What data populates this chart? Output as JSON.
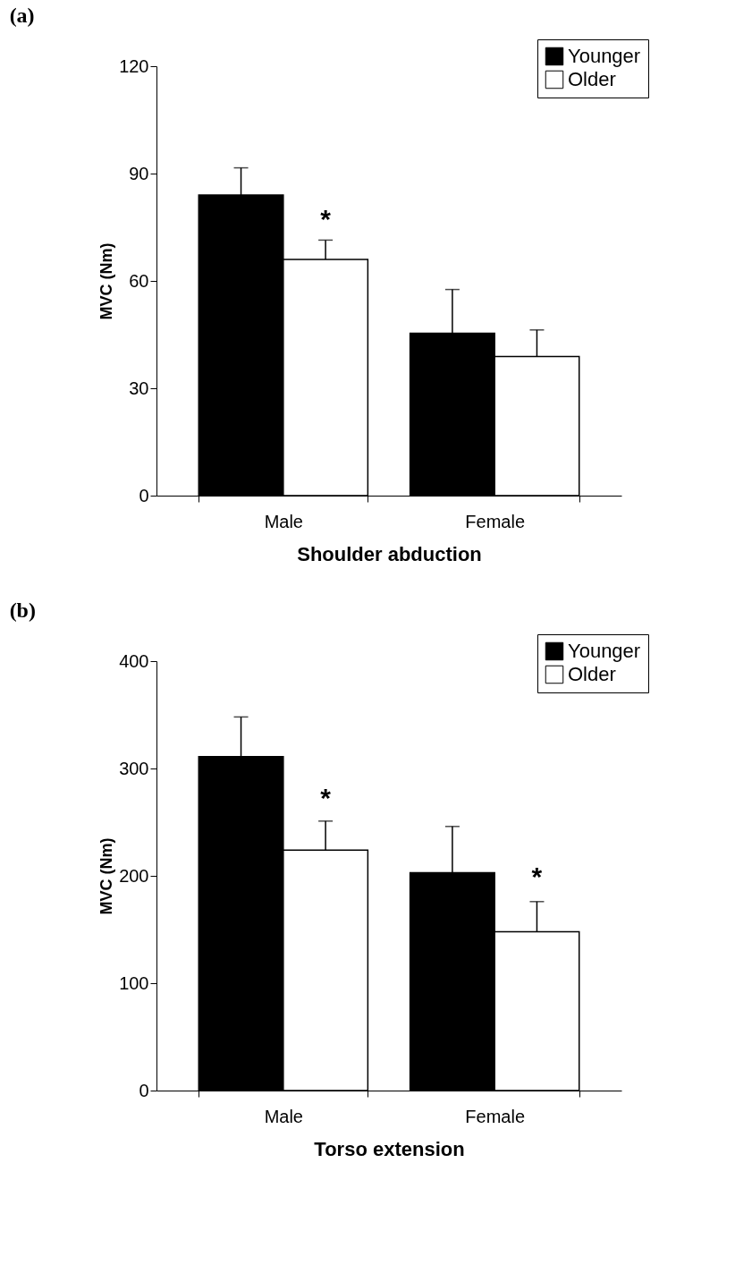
{
  "chart_data": [
    {
      "type": "bar",
      "title": "(a)",
      "xlabel": "Shoulder abduction",
      "ylabel": "MVC (Nm)",
      "categories": [
        "Male",
        "Female"
      ],
      "series": [
        {
          "name": "Younger",
          "color": "#000000",
          "values": [
            84.0,
            45.4
          ],
          "errors": [
            [
              84.0,
              91.6
            ],
            [
              45.4,
              57.6
            ]
          ]
        },
        {
          "name": "Older",
          "color": "#ffffff",
          "values": [
            66.0,
            38.9
          ],
          "errors": [
            [
              66.0,
              71.4
            ],
            [
              38.9,
              46.3
            ]
          ]
        }
      ],
      "ylim": [
        0,
        120
      ],
      "yticks": [
        0,
        30,
        60,
        90,
        120
      ],
      "grid": false,
      "legend": "top right",
      "annotations": [
        {
          "text": "*",
          "x": "Male",
          "y": 77
        }
      ]
    },
    {
      "type": "bar",
      "title": "(b)",
      "xlabel": "Torso extension",
      "ylabel": "MVC (Nm)",
      "categories": [
        "Male",
        "Female"
      ],
      "series": [
        {
          "name": "Younger",
          "color": "#000000",
          "values": [
            311,
            203
          ],
          "errors": [
            [
              311,
              348
            ],
            [
              203,
              246
            ]
          ]
        },
        {
          "name": "Older",
          "color": "#ffffff",
          "values": [
            224,
            148
          ],
          "errors": [
            [
              224,
              251
            ],
            [
              148,
              176
            ]
          ]
        }
      ],
      "ylim": [
        0,
        400
      ],
      "yticks": [
        0,
        100,
        200,
        300,
        400
      ],
      "grid": false,
      "legend": "top right",
      "annotations": [
        {
          "text": "*",
          "x": "Male",
          "y": 272
        },
        {
          "text": "*",
          "x": "Female",
          "y": 198
        }
      ]
    }
  ]
}
